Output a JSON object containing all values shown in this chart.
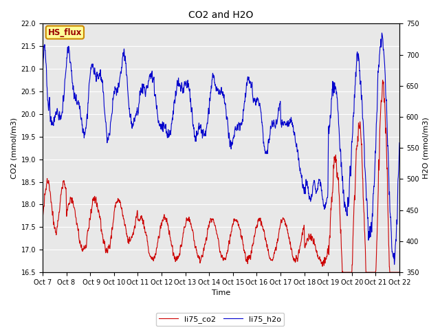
{
  "title": "CO2 and H2O",
  "xlabel": "Time",
  "ylabel_left": "CO2 (mmol/m3)",
  "ylabel_right": "H2O (mmol/m3)",
  "xlim": [
    0,
    15
  ],
  "ylim_left": [
    16.5,
    22.0
  ],
  "ylim_right": [
    350,
    750
  ],
  "xtick_labels": [
    "Oct 7",
    "Oct 8",
    " Oct 9",
    "Oct 10",
    "Oct 11",
    "Oct 12",
    "Oct 13",
    "Oct 14",
    "Oct 15",
    "Oct 16",
    "Oct 17",
    "Oct 18",
    "Oct 19",
    "Oct 20",
    "Oct 21",
    "Oct 22"
  ],
  "xtick_positions": [
    0,
    1,
    2,
    3,
    4,
    5,
    6,
    7,
    8,
    9,
    10,
    11,
    12,
    13,
    14,
    15
  ],
  "legend_label_co2": "li75_co2",
  "legend_label_h2o": "li75_h2o",
  "color_co2": "#cc0000",
  "color_h2o": "#0000cc",
  "annotation_text": "HS_flux",
  "annotation_box_facecolor": "#ffff99",
  "annotation_box_edgecolor": "#cc8800",
  "background_color": "#e8e8e8",
  "grid_color": "#ffffff",
  "fig_background": "#ffffff",
  "linewidth": 0.8,
  "title_fontsize": 10,
  "axis_label_fontsize": 8,
  "tick_fontsize": 7,
  "legend_fontsize": 8
}
